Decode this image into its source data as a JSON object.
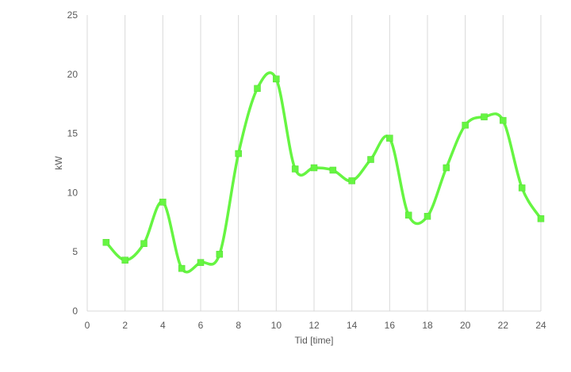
{
  "chart_data": {
    "type": "line",
    "title": "",
    "xlabel": "Tid [time]",
    "ylabel": "kW",
    "xlim": [
      0,
      24
    ],
    "ylim": [
      0,
      25
    ],
    "x_ticks": [
      0,
      2,
      4,
      6,
      8,
      10,
      12,
      14,
      16,
      18,
      20,
      22,
      24
    ],
    "y_ticks": [
      0,
      5,
      10,
      15,
      20,
      25
    ],
    "grid": {
      "vertical": true,
      "horizontal": false
    },
    "legend": "none",
    "smooth": true,
    "series": [
      {
        "marker": "square",
        "color": "#66f542",
        "x": [
          1,
          2,
          3,
          4,
          5,
          6,
          7,
          8,
          9,
          10,
          11,
          12,
          13,
          14,
          15,
          16,
          17,
          18,
          19,
          20,
          21,
          22,
          23,
          24
        ],
        "y": [
          5.8,
          4.3,
          5.7,
          9.2,
          3.6,
          4.1,
          4.8,
          13.3,
          18.8,
          19.6,
          12.0,
          12.1,
          11.9,
          11.0,
          12.8,
          14.6,
          8.1,
          8.0,
          12.1,
          15.7,
          16.4,
          16.1,
          10.4,
          7.8
        ]
      }
    ]
  }
}
